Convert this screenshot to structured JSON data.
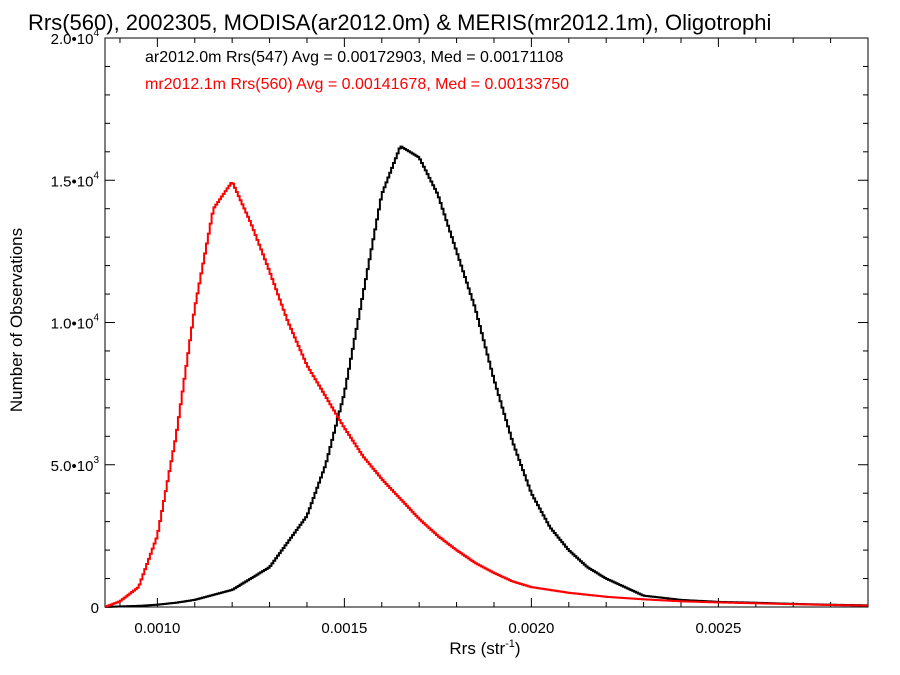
{
  "chart_data": {
    "type": "line",
    "title": "Rrs(560), 2002305, MODISA(ar2012.0m) & MERIS(mr2012.1m), Oligotrophi",
    "xlabel": "Rrs (str",
    "xlabel_sup": "-1",
    "xlabel_close": ")",
    "ylabel": "Number of Observations",
    "xlim": [
      0.00086,
      0.0029
    ],
    "ylim": [
      0,
      20000
    ],
    "x_ticks": [
      {
        "value": 0.001,
        "label": "0.0010"
      },
      {
        "value": 0.0015,
        "label": "0.0015"
      },
      {
        "value": 0.002,
        "label": "0.0020"
      },
      {
        "value": 0.0025,
        "label": "0.0025"
      }
    ],
    "y_ticks": [
      {
        "value": 0,
        "label": "0",
        "sup": ""
      },
      {
        "value": 5000,
        "label": "5.0•10",
        "sup": "3"
      },
      {
        "value": 10000,
        "label": "1.0•10",
        "sup": "4"
      },
      {
        "value": 15000,
        "label": "1.5•10",
        "sup": "4"
      },
      {
        "value": 20000,
        "label": "2.0•10",
        "sup": "4"
      }
    ],
    "annotations": [
      {
        "text": "ar2012.0m Rrs(547) Avg = 0.00172903, Med = 0.00171108",
        "color": "#000000"
      },
      {
        "text": "mr2012.1m Rrs(560) Avg = 0.00141678, Med = 0.00133750",
        "color": "#ff0000"
      }
    ],
    "grid": false,
    "series": [
      {
        "name": "ar2012.0m Rrs(547)",
        "color": "#000000",
        "x": [
          0.00086,
          0.0009,
          0.00095,
          0.001,
          0.00105,
          0.0011,
          0.0012,
          0.0013,
          0.0014,
          0.00145,
          0.0015,
          0.00155,
          0.0016,
          0.00165,
          0.0017,
          0.00175,
          0.0018,
          0.00185,
          0.0019,
          0.00195,
          0.002,
          0.00205,
          0.0021,
          0.00215,
          0.0022,
          0.00225,
          0.0023,
          0.0024,
          0.0025,
          0.0026,
          0.0027,
          0.0028,
          0.0029
        ],
        "y": [
          0,
          20,
          40,
          80,
          150,
          250,
          600,
          1400,
          3200,
          5000,
          7500,
          11000,
          14500,
          16200,
          15800,
          14500,
          12500,
          10500,
          8000,
          5800,
          4000,
          2800,
          2000,
          1400,
          1000,
          700,
          400,
          250,
          180,
          150,
          110,
          80,
          60
        ]
      },
      {
        "name": "mr2012.1m Rrs(560)",
        "color": "#ff0000",
        "x": [
          0.00086,
          0.0009,
          0.00095,
          0.001,
          0.00105,
          0.0011,
          0.00115,
          0.0012,
          0.00125,
          0.0013,
          0.00135,
          0.0014,
          0.00145,
          0.0015,
          0.00155,
          0.0016,
          0.00165,
          0.0017,
          0.00175,
          0.0018,
          0.00185,
          0.0019,
          0.00195,
          0.002,
          0.0021,
          0.0022,
          0.0023,
          0.0024,
          0.0025,
          0.0026,
          0.0027,
          0.0028,
          0.0029
        ],
        "y": [
          0,
          200,
          700,
          2500,
          6000,
          10500,
          14000,
          14950,
          13500,
          11800,
          10000,
          8500,
          7400,
          6300,
          5300,
          4500,
          3800,
          3100,
          2500,
          2000,
          1550,
          1200,
          900,
          700,
          500,
          360,
          270,
          200,
          160,
          130,
          100,
          70,
          50
        ]
      }
    ]
  }
}
